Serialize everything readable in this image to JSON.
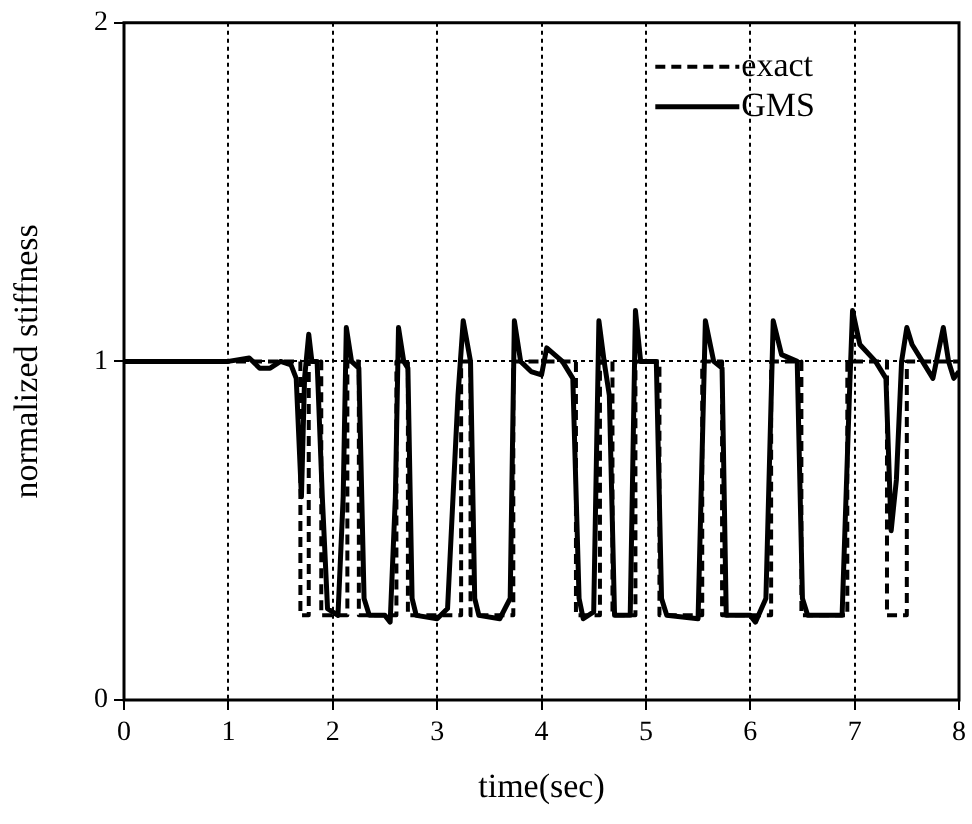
{
  "chart_data": {
    "type": "line",
    "xlabel": "time(sec)",
    "ylabel": "normalized stiffness",
    "xlim": [
      0,
      8
    ],
    "xticks": [
      0,
      1,
      2,
      3,
      4,
      5,
      6,
      7,
      8
    ],
    "ylim": [
      0,
      2
    ],
    "yticks": [
      0,
      1,
      2
    ],
    "grid": true,
    "legend": "top right",
    "marker": "none",
    "series": [
      {
        "name": "exact",
        "color": "#000000",
        "line_style": "dashed",
        "x": [
          0,
          1.69,
          1.69,
          1.77,
          1.77,
          1.89,
          1.89,
          2.14,
          2.14,
          2.25,
          2.25,
          2.61,
          2.61,
          2.72,
          2.72,
          3.23,
          3.23,
          3.32,
          3.32,
          3.73,
          3.73,
          4.33,
          4.33,
          4.56,
          4.56,
          4.68,
          4.68,
          4.9,
          4.9,
          5.13,
          5.13,
          5.54,
          5.54,
          5.73,
          5.73,
          6.2,
          6.2,
          6.49,
          6.49,
          6.93,
          6.93,
          7.31,
          7.31,
          7.5,
          7.5,
          8
        ],
        "values": [
          1,
          1,
          0.25,
          0.25,
          1,
          1,
          0.25,
          0.25,
          1,
          1,
          0.25,
          0.25,
          1,
          1,
          0.25,
          0.25,
          1,
          1,
          0.25,
          0.25,
          1,
          1,
          0.25,
          0.25,
          1,
          1,
          0.25,
          0.25,
          1,
          1,
          0.25,
          0.25,
          1,
          1,
          0.25,
          0.25,
          1,
          1,
          0.25,
          0.25,
          1,
          1,
          0.25,
          0.25,
          1,
          1
        ]
      },
      {
        "name": "GMS",
        "color": "#000000",
        "line_style": "solid",
        "x": [
          0,
          1,
          1.2,
          1.3,
          1.4,
          1.5,
          1.6,
          1.65,
          1.7,
          1.73,
          1.77,
          1.8,
          1.85,
          1.9,
          1.95,
          2.05,
          2.1,
          2.13,
          2.18,
          2.25,
          2.3,
          2.35,
          2.5,
          2.55,
          2.6,
          2.63,
          2.68,
          2.72,
          2.76,
          2.8,
          3,
          3.1,
          3.2,
          3.25,
          3.32,
          3.36,
          3.4,
          3.6,
          3.7,
          3.74,
          3.8,
          3.9,
          4,
          4.05,
          4.2,
          4.3,
          4.36,
          4.4,
          4.5,
          4.55,
          4.6,
          4.65,
          4.7,
          4.85,
          4.9,
          4.95,
          5.1,
          5.15,
          5.2,
          5.5,
          5.57,
          5.65,
          5.73,
          5.77,
          6,
          6.05,
          6.15,
          6.22,
          6.3,
          6.45,
          6.5,
          6.55,
          6.88,
          6.95,
          6.98,
          7.05,
          7.2,
          7.3,
          7.35,
          7.4,
          7.45,
          7.5,
          7.55,
          7.75,
          7.85,
          7.9,
          7.95,
          8
        ],
        "values": [
          1,
          1,
          1.01,
          0.98,
          0.98,
          1,
          0.99,
          0.95,
          0.6,
          0.95,
          1.08,
          1,
          1,
          0.6,
          0.27,
          0.25,
          0.6,
          1.1,
          1,
          0.98,
          0.3,
          0.25,
          0.25,
          0.23,
          0.6,
          1.1,
          1,
          0.98,
          0.3,
          0.25,
          0.24,
          0.27,
          0.9,
          1.12,
          1,
          0.3,
          0.25,
          0.24,
          0.3,
          1.12,
          1,
          0.97,
          0.96,
          1.04,
          1,
          0.95,
          0.3,
          0.24,
          0.26,
          1.12,
          1,
          0.9,
          0.25,
          0.25,
          1.15,
          1,
          1,
          0.3,
          0.25,
          0.24,
          1.12,
          1,
          0.98,
          0.25,
          0.25,
          0.23,
          0.3,
          1.12,
          1.02,
          1,
          0.3,
          0.25,
          0.25,
          0.9,
          1.15,
          1.05,
          1,
          0.95,
          0.5,
          0.65,
          1,
          1.1,
          1.05,
          0.95,
          1.1,
          1,
          0.95,
          0.97
        ]
      }
    ]
  }
}
